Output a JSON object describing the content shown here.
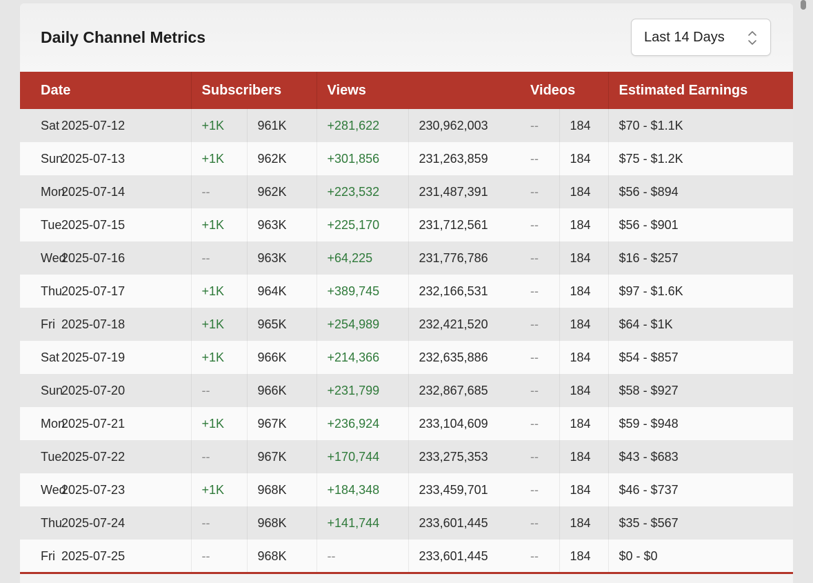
{
  "header": {
    "title": "Daily Channel Metrics",
    "range_select": {
      "value": "Last 14 Days",
      "icon": "chevron-up-down-icon"
    }
  },
  "table": {
    "columns": {
      "date": "Date",
      "subscribers": "Subscribers",
      "views": "Views",
      "videos": "Videos",
      "earnings": "Estimated Earnings"
    },
    "rows": [
      {
        "day": "Sat",
        "date": "2025-07-12",
        "sub_change": "+1K",
        "sub_total": "961K",
        "view_change": "+281,622",
        "view_total": "230,962,003",
        "video_change": "--",
        "video_total": "184",
        "earnings": "$70 - $1.1K"
      },
      {
        "day": "Sun",
        "date": "2025-07-13",
        "sub_change": "+1K",
        "sub_total": "962K",
        "view_change": "+301,856",
        "view_total": "231,263,859",
        "video_change": "--",
        "video_total": "184",
        "earnings": "$75 - $1.2K"
      },
      {
        "day": "Mon",
        "date": "2025-07-14",
        "sub_change": "--",
        "sub_total": "962K",
        "view_change": "+223,532",
        "view_total": "231,487,391",
        "video_change": "--",
        "video_total": "184",
        "earnings": "$56 - $894"
      },
      {
        "day": "Tue",
        "date": "2025-07-15",
        "sub_change": "+1K",
        "sub_total": "963K",
        "view_change": "+225,170",
        "view_total": "231,712,561",
        "video_change": "--",
        "video_total": "184",
        "earnings": "$56 - $901"
      },
      {
        "day": "Wed",
        "date": "2025-07-16",
        "sub_change": "--",
        "sub_total": "963K",
        "view_change": "+64,225",
        "view_total": "231,776,786",
        "video_change": "--",
        "video_total": "184",
        "earnings": "$16 - $257"
      },
      {
        "day": "Thu",
        "date": "2025-07-17",
        "sub_change": "+1K",
        "sub_total": "964K",
        "view_change": "+389,745",
        "view_total": "232,166,531",
        "video_change": "--",
        "video_total": "184",
        "earnings": "$97 - $1.6K"
      },
      {
        "day": "Fri",
        "date": "2025-07-18",
        "sub_change": "+1K",
        "sub_total": "965K",
        "view_change": "+254,989",
        "view_total": "232,421,520",
        "video_change": "--",
        "video_total": "184",
        "earnings": "$64 - $1K"
      },
      {
        "day": "Sat",
        "date": "2025-07-19",
        "sub_change": "+1K",
        "sub_total": "966K",
        "view_change": "+214,366",
        "view_total": "232,635,886",
        "video_change": "--",
        "video_total": "184",
        "earnings": "$54 - $857"
      },
      {
        "day": "Sun",
        "date": "2025-07-20",
        "sub_change": "--",
        "sub_total": "966K",
        "view_change": "+231,799",
        "view_total": "232,867,685",
        "video_change": "--",
        "video_total": "184",
        "earnings": "$58 - $927"
      },
      {
        "day": "Mon",
        "date": "2025-07-21",
        "sub_change": "+1K",
        "sub_total": "967K",
        "view_change": "+236,924",
        "view_total": "233,104,609",
        "video_change": "--",
        "video_total": "184",
        "earnings": "$59 - $948"
      },
      {
        "day": "Tue",
        "date": "2025-07-22",
        "sub_change": "--",
        "sub_total": "967K",
        "view_change": "+170,744",
        "view_total": "233,275,353",
        "video_change": "--",
        "video_total": "184",
        "earnings": "$43 - $683"
      },
      {
        "day": "Wed",
        "date": "2025-07-23",
        "sub_change": "+1K",
        "sub_total": "968K",
        "view_change": "+184,348",
        "view_total": "233,459,701",
        "video_change": "--",
        "video_total": "184",
        "earnings": "$46 - $737"
      },
      {
        "day": "Thu",
        "date": "2025-07-24",
        "sub_change": "--",
        "sub_total": "968K",
        "view_change": "+141,744",
        "view_total": "233,601,445",
        "video_change": "--",
        "video_total": "184",
        "earnings": "$35 - $567"
      },
      {
        "day": "Fri",
        "date": "2025-07-25",
        "sub_change": "--",
        "sub_total": "968K",
        "view_change": "--",
        "view_total": "233,601,445",
        "video_change": "--",
        "video_total": "184",
        "earnings": "$0 - $0"
      }
    ]
  },
  "colors": {
    "header_red": "#b3362b",
    "positive_green": "#2f7a3a",
    "muted_dash": "#8a8a8a"
  }
}
